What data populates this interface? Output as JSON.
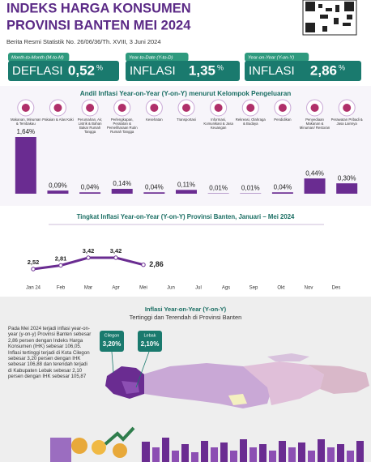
{
  "header": {
    "title_line1": "INDEKS HARGA KONSUMEN",
    "title_line2": "PROVINSI BANTEN MEI 2024",
    "subtitle": "Berita Resmi Statistik No. 26/06/36/Th. XVIII, 3 Juni 2024"
  },
  "kpis": [
    {
      "period": "Month-to-Month (M-to-M)",
      "status": "DEFLASI",
      "value": "0,52",
      "unit": "%"
    },
    {
      "period": "Year-to-Date (Y-to-D)",
      "status": "INFLASI",
      "value": "1,35",
      "unit": "%"
    },
    {
      "period": "Year-on-Year (Y-on-Y)",
      "status": "INFLASI",
      "value": "2,86",
      "unit": "%"
    }
  ],
  "chart_data": [
    {
      "type": "bar",
      "title": "Andil Inflasi Year-on-Year (Y-on-Y) menurut Kelompok Pengeluaran",
      "color": "#6a2c91",
      "categories": [
        "Makanan, Minuman & Tembakau",
        "Pakaian & Alas Kaki",
        "Perumahan, Air, Listrik & Bahan Bakar Rumah Tangga",
        "Perlengkapan, Peralatan & Pemeliharaan Rutin Rumah Tangga",
        "Kesehatan",
        "Transportasi",
        "Informasi, Komunikasi & Jasa Keuangan",
        "Rekreasi, Olahraga & Budaya",
        "Pendidikan",
        "Penyediaan Makanan & Minuman/ Restoran",
        "Perawatan Pribadi & Jasa Lainnya"
      ],
      "values": [
        1.64,
        0.09,
        0.04,
        0.14,
        0.04,
        0.11,
        0.01,
        0.01,
        0.04,
        0.44,
        0.3
      ],
      "value_labels": [
        "1,64%",
        "0,09%",
        "0,04%",
        "0,14%",
        "0,04%",
        "0,11%",
        "0,01%",
        "0,01%",
        "0,04%",
        "0,44%",
        "0,30%"
      ]
    },
    {
      "type": "line",
      "title": "Tingkat Inflasi Year-on-Year (Y-on-Y) Provinsi Banten, Januari – Mei 2024",
      "color": "#6a2c91",
      "categories": [
        "Jan 24",
        "Feb",
        "Mar",
        "Apr",
        "Mei",
        "Jun",
        "Jul",
        "Ags",
        "Sep",
        "Okt",
        "Nov",
        "Des"
      ],
      "values": [
        2.52,
        2.81,
        3.42,
        3.42,
        2.86,
        null,
        null,
        null,
        null,
        null,
        null,
        null
      ],
      "value_labels": [
        "2,52",
        "2,81",
        "3,42",
        "3,42",
        "2,86",
        null,
        null,
        null,
        null,
        null,
        null,
        null
      ]
    }
  ],
  "regional": {
    "title": "Inflasi Year-on-Year (Y-on-Y)",
    "subtitle": "Tertinggi dan Terendah di Provinsi Banten",
    "paragraph": "Pada Mei 2024 terjadi inflasi year-on-year (y-on-y) Provinsi Banten sebesar 2,86 persen dengan Indeks Harga Konsumen (IHK) sebesar 106,05. Inflasi tertinggi terjadi di Kota Cilegon sebesar 3,20 persen dengan IHK sebesar 106,88 dan terendah terjadi di Kabupaten Lebak sebesar 2,10 persen dengan IHK sebesar 105,87",
    "highest": {
      "name": "Cilegon",
      "value": "3,20%"
    },
    "lowest": {
      "name": "Lebak",
      "value": "2,10%"
    }
  }
}
